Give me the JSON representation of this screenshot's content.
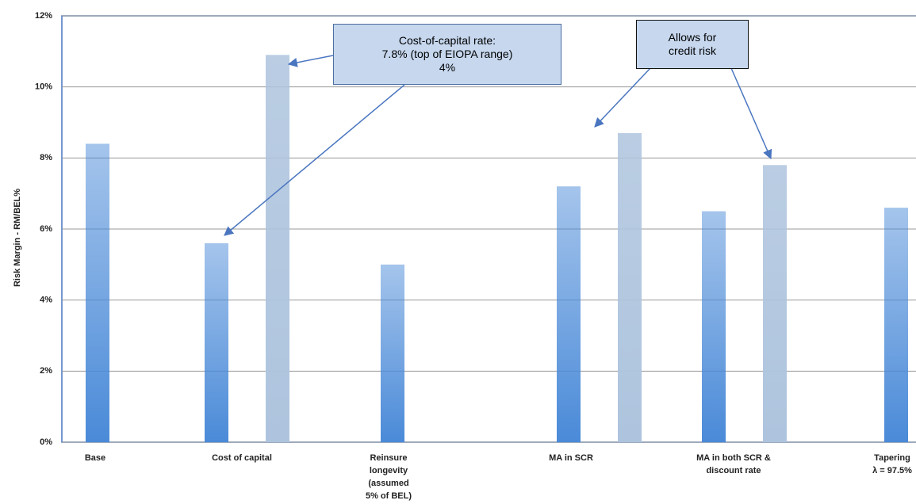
{
  "chart_data": {
    "type": "bar",
    "y_label": "Risk Margin - RM/BEL%",
    "categories": [
      "Base",
      "Cost of capital",
      "Reinsure\nlongevity\n(assumed\n5% of BEL)",
      "MA in SCR",
      "MA in both SCR &\ndiscount rate",
      "Tapering\nλ = 97.5%"
    ],
    "series": [
      {
        "color": "#4a8ad8",
        "values": [
          8.4,
          5.6,
          5.0,
          7.2,
          6.5,
          6.6
        ]
      },
      {
        "color": "#aec4de",
        "values": [
          null,
          10.9,
          null,
          8.7,
          7.8,
          null
        ]
      }
    ],
    "ylim": [
      0,
      12
    ],
    "yticks": [
      {
        "value": 0,
        "label": "0%"
      },
      {
        "value": 2,
        "label": "2%"
      },
      {
        "value": 4,
        "label": "4%"
      },
      {
        "value": 6,
        "label": "6%"
      },
      {
        "value": 8,
        "label": "8%"
      },
      {
        "value": 10,
        "label": "10%"
      },
      {
        "value": 12,
        "label": "12%"
      }
    ],
    "grid": true,
    "annotations": [
      "Cost-of-capital rate:\n7.8% (top of EIOPA range)\n4%",
      "Allows for\ncredit risk"
    ]
  }
}
